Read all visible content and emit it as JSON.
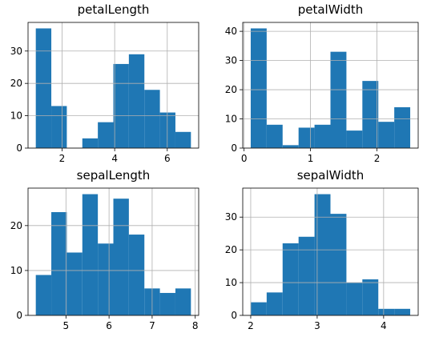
{
  "colors": {
    "bar": "#1f77b4",
    "grid": "#b0b0b0",
    "axis": "#000000"
  },
  "chart_data": [
    {
      "type": "bar",
      "title": "petalLength",
      "bin_edges": [
        1.0,
        1.59,
        2.18,
        2.77,
        3.36,
        3.95,
        4.54,
        5.13,
        5.72,
        6.31,
        6.9
      ],
      "values": [
        37,
        13,
        0,
        3,
        8,
        26,
        29,
        18,
        11,
        5
      ],
      "xlim": [
        0.705,
        7.195
      ],
      "ylim": [
        0,
        38.85
      ],
      "xticks": [
        2,
        4,
        6
      ],
      "yticks": [
        0,
        10,
        20,
        30
      ],
      "grid": true
    },
    {
      "type": "bar",
      "title": "petalWidth",
      "bin_edges": [
        0.1,
        0.34,
        0.58,
        0.82,
        1.06,
        1.3,
        1.54,
        1.78,
        2.02,
        2.26,
        2.5
      ],
      "values": [
        41,
        8,
        1,
        7,
        8,
        33,
        6,
        23,
        9,
        14
      ],
      "xlim": [
        -0.02,
        2.62
      ],
      "ylim": [
        0,
        43.05
      ],
      "xticks": [
        0,
        1,
        2
      ],
      "yticks": [
        0,
        10,
        20,
        30,
        40
      ],
      "grid": true
    },
    {
      "type": "bar",
      "title": "sepalLength",
      "bin_edges": [
        4.3,
        4.66,
        5.02,
        5.38,
        5.74,
        6.1,
        6.46,
        6.82,
        7.18,
        7.54,
        7.9
      ],
      "values": [
        9,
        23,
        14,
        27,
        16,
        26,
        18,
        6,
        5,
        6
      ],
      "xlim": [
        4.12,
        8.08
      ],
      "ylim": [
        0,
        28.35
      ],
      "xticks": [
        5,
        6,
        7,
        8
      ],
      "yticks": [
        0,
        10,
        20
      ],
      "grid": true
    },
    {
      "type": "bar",
      "title": "sepalWidth",
      "bin_edges": [
        2.0,
        2.24,
        2.48,
        2.72,
        2.96,
        3.2,
        3.44,
        3.68,
        3.92,
        4.16,
        4.4
      ],
      "values": [
        4,
        7,
        22,
        24,
        37,
        31,
        10,
        11,
        2,
        2
      ],
      "xlim": [
        1.88,
        4.52
      ],
      "ylim": [
        0,
        38.85
      ],
      "xticks": [
        2,
        3,
        4
      ],
      "yticks": [
        0,
        10,
        20,
        30
      ],
      "grid": true
    }
  ]
}
